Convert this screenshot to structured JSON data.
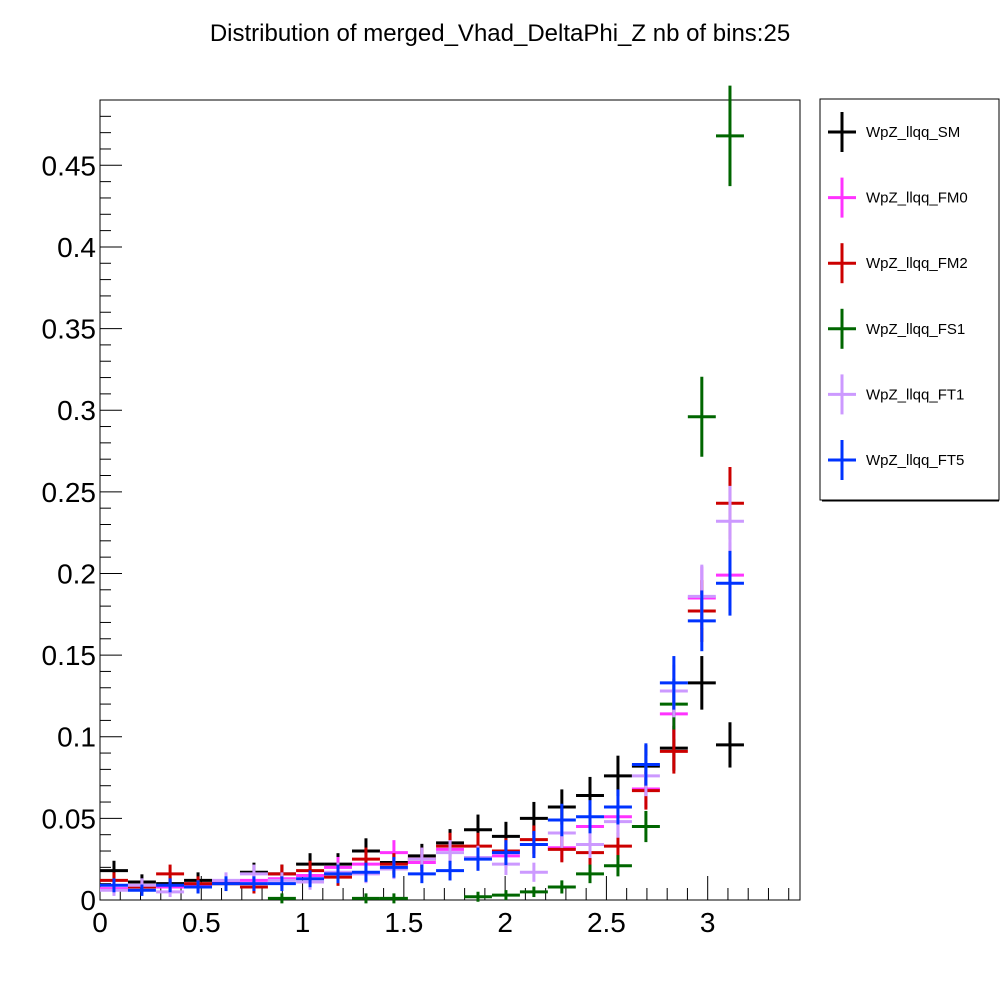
{
  "chart_data": {
    "type": "scatter",
    "title": "Distribution of merged_Vhad_DeltaPhi_Z nb of bins:25",
    "xlabel": "",
    "ylabel": "",
    "xlim": [
      0,
      3.4557
    ],
    "ylim": [
      0,
      0.49
    ],
    "x_ticks": [
      "0",
      "0.5",
      "1",
      "1.5",
      "2",
      "2.5",
      "3"
    ],
    "y_ticks": [
      "0",
      "0.05",
      "0.1",
      "0.15",
      "0.2",
      "0.25",
      "0.3",
      "0.35",
      "0.4",
      "0.45"
    ],
    "grid": false,
    "legend_position": "top-right, outside plot",
    "x": [
      0.069,
      0.207,
      0.346,
      0.484,
      0.622,
      0.76,
      0.898,
      1.037,
      1.175,
      1.313,
      1.451,
      1.589,
      1.728,
      1.866,
      2.004,
      2.142,
      2.28,
      2.419,
      2.557,
      2.695,
      2.833,
      2.971,
      3.11
    ],
    "series": [
      {
        "name": "WpZ_llqq_SM",
        "color": "#000000",
        "values": [
          0.018,
          0.011,
          0.01,
          0.012,
          0.01,
          0.017,
          0.016,
          0.022,
          0.022,
          0.03,
          0.023,
          0.027,
          0.035,
          0.043,
          0.039,
          0.05,
          0.057,
          0.064,
          0.076,
          0.082,
          0.093,
          0.133,
          0.095
        ]
      },
      {
        "name": "WpZ_llqq_FM0",
        "color": "#ff33ff",
        "values": [
          0.007,
          0.008,
          0.008,
          0.009,
          0.011,
          0.012,
          0.013,
          0.015,
          0.02,
          0.022,
          0.029,
          0.023,
          0.031,
          0.026,
          0.027,
          0.034,
          0.032,
          0.045,
          0.051,
          0.068,
          0.114,
          0.185,
          0.199
        ]
      },
      {
        "name": "WpZ_llqq_FM2",
        "color": "#cc0000",
        "values": [
          0.012,
          0.008,
          0.016,
          0.01,
          0.01,
          0.008,
          0.016,
          0.018,
          0.014,
          0.025,
          0.022,
          0.025,
          0.033,
          0.033,
          0.03,
          0.037,
          0.031,
          0.029,
          0.033,
          0.067,
          0.091,
          0.177,
          0.243
        ]
      },
      {
        "name": "WpZ_llqq_FS1",
        "color": "#006600",
        "values": [
          0.0,
          0.0,
          0.0,
          0.0,
          0.0,
          0.0,
          0.001,
          0.0,
          0.0,
          0.001,
          0.001,
          0.0,
          0.0,
          0.002,
          0.003,
          0.005,
          0.008,
          0.016,
          0.021,
          0.045,
          0.12,
          0.296,
          0.468
        ]
      },
      {
        "name": "WpZ_llqq_FT1",
        "color": "#cc99ff",
        "values": [
          0.006,
          0.009,
          0.005,
          0.008,
          0.012,
          0.016,
          0.012,
          0.011,
          0.017,
          0.016,
          0.019,
          0.025,
          0.029,
          0.026,
          0.022,
          0.017,
          0.041,
          0.034,
          0.048,
          0.076,
          0.128,
          0.186,
          0.232
        ]
      },
      {
        "name": "WpZ_llqq_FT5",
        "color": "#0033ff",
        "values": [
          0.009,
          0.006,
          0.009,
          0.008,
          0.01,
          0.01,
          0.01,
          0.013,
          0.016,
          0.017,
          0.02,
          0.016,
          0.018,
          0.025,
          0.029,
          0.034,
          0.049,
          0.051,
          0.057,
          0.083,
          0.133,
          0.171,
          0.194
        ]
      }
    ]
  }
}
